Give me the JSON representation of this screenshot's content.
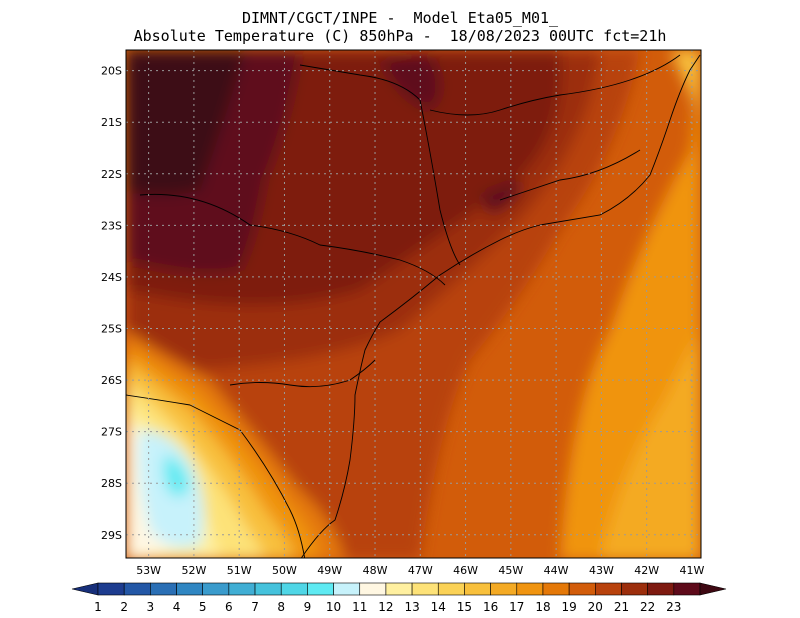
{
  "title": {
    "line1": "DIMNT/CGCT/INPE -  Model Eta05_M01_",
    "line2": "Absolute Temperature (C) 850hPa -  18/08/2023 00UTC fct=21h"
  },
  "map": {
    "lat_labels": [
      "20S",
      "21S",
      "22S",
      "23S",
      "24S",
      "25S",
      "26S",
      "27S",
      "28S",
      "29S"
    ],
    "lon_labels": [
      "53W",
      "52W",
      "51W",
      "50W",
      "49W",
      "48W",
      "47W",
      "46W",
      "45W",
      "44W",
      "43W",
      "42W",
      "41W"
    ]
  },
  "colorbar": {
    "labels": [
      "1",
      "2",
      "3",
      "4",
      "5",
      "6",
      "7",
      "8",
      "9",
      "10",
      "11",
      "12",
      "13",
      "14",
      "15",
      "16",
      "17",
      "18",
      "19",
      "20",
      "21",
      "22",
      "23"
    ],
    "colors": [
      "#1d3c8f",
      "#2357a6",
      "#2a6fb5",
      "#2f86c2",
      "#3a9bcc",
      "#40aed4",
      "#45c2dc",
      "#4fd6e6",
      "#5eeaf2",
      "#c7f2fb",
      "#fff7e2",
      "#fff0a0",
      "#fde278",
      "#fbd256",
      "#f8c03c",
      "#f4aa24",
      "#f09410",
      "#e47808",
      "#d25c0a",
      "#b8420c",
      "#9c2e0c",
      "#7e1a10",
      "#5e0a1a"
    ],
    "under_color": "#172f7a",
    "over_color": "#3e0812"
  }
}
